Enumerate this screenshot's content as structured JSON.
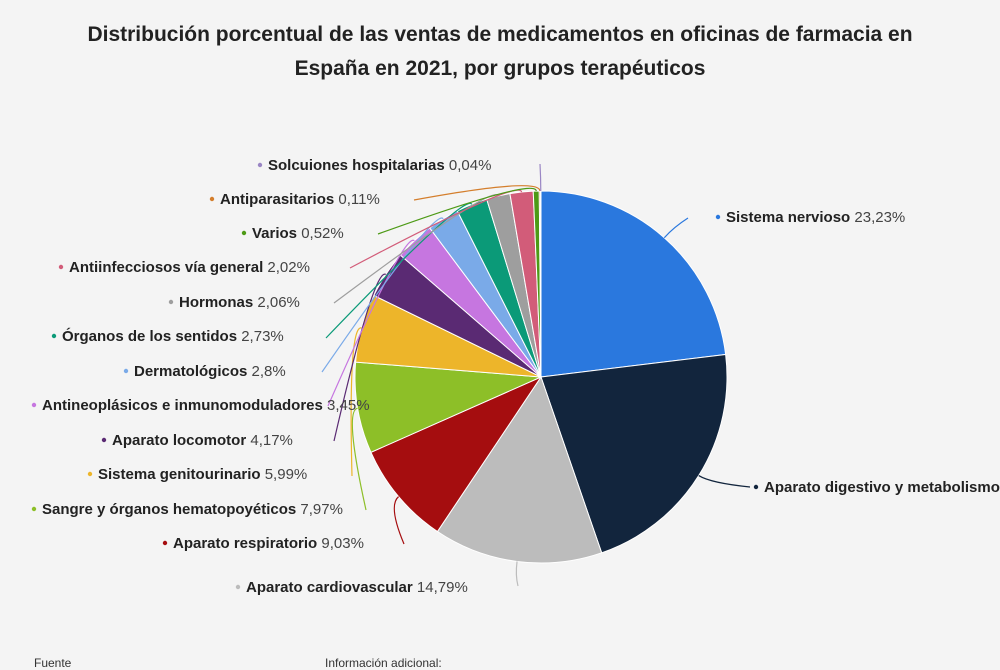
{
  "title": "Distribución porcentual de las ventas de medicamentos en oficinas de farmacia en España en 2021, por grupos terapéuticos",
  "footer": {
    "source_label": "Fuente",
    "info_label": "Información adicional:"
  },
  "chart_data": {
    "type": "pie",
    "unit": "%",
    "slices": [
      {
        "name": "Sistema nervioso",
        "value": 23.23,
        "label": "23,23%",
        "color": "#2a78de"
      },
      {
        "name": "Aparato digestivo y metabolismo",
        "value": 21.8,
        "label": "",
        "color": "#12253d"
      },
      {
        "name": "Aparato cardiovascular",
        "value": 14.79,
        "label": "14,79%",
        "color": "#bcbcbc"
      },
      {
        "name": "Aparato respiratorio",
        "value": 9.03,
        "label": "9,03%",
        "color": "#a50d0f"
      },
      {
        "name": "Sangre y órganos hematopoyéticos",
        "value": 7.97,
        "label": "7,97%",
        "color": "#8dbf28"
      },
      {
        "name": "Sistema genitourinario",
        "value": 5.99,
        "label": "5,99%",
        "color": "#edb52a"
      },
      {
        "name": "Aparato locomotor",
        "value": 4.17,
        "label": "4,17%",
        "color": "#5a2a73"
      },
      {
        "name": "Antineoplásicos e inmunomoduladores",
        "value": 3.45,
        "label": "3,45%",
        "color": "#c676e0"
      },
      {
        "name": "Dermatológicos",
        "value": 2.8,
        "label": "2,8%",
        "color": "#7aaae8"
      },
      {
        "name": "Órganos de los sentidos",
        "value": 2.73,
        "label": "2,73%",
        "color": "#0b9a78"
      },
      {
        "name": "Hormonas",
        "value": 2.06,
        "label": "2,06%",
        "color": "#9e9e9e"
      },
      {
        "name": "Antiinfecciosos vía general",
        "value": 2.02,
        "label": "2,02%",
        "color": "#d25c79"
      },
      {
        "name": "Varios",
        "value": 0.52,
        "label": "0,52%",
        "color": "#4d9a16"
      },
      {
        "name": "Antiparasitarios",
        "value": 0.11,
        "label": "0,11%",
        "color": "#d47e2c"
      },
      {
        "name": "Solcuiones hospitalarias",
        "value": 0.04,
        "label": "0,04%",
        "color": "#9a86c4"
      }
    ]
  }
}
